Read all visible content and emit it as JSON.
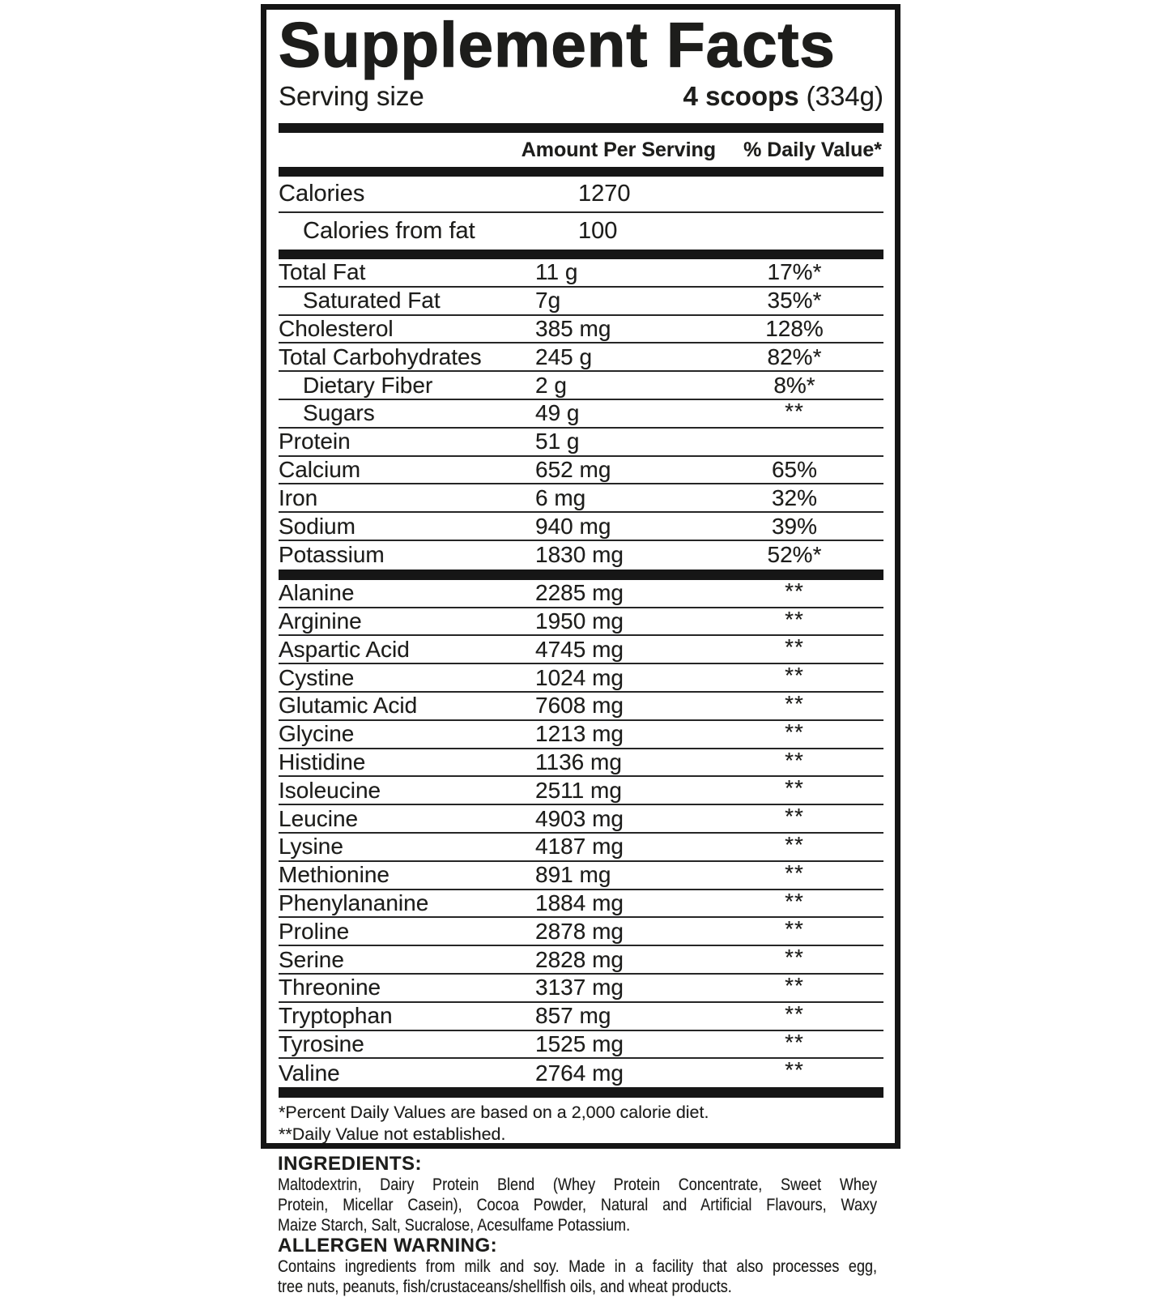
{
  "panel": {
    "title": "Supplement Facts",
    "serving": {
      "label": "Serving size",
      "amount_bold": "4 scoops",
      "amount_rest": "(334g)"
    },
    "columns": {
      "amount": "Amount Per Serving",
      "daily_value": "% Daily Value*"
    },
    "calories_rows": [
      {
        "label": "Calories",
        "value": "1270",
        "indent": false
      },
      {
        "label": "Calories from fat",
        "value": "100",
        "indent": true
      }
    ],
    "nutrient_rows": [
      {
        "label": "Total Fat",
        "amount": "11 g",
        "dv": "17%*",
        "indent": false
      },
      {
        "label": "Saturated Fat",
        "amount": "7g",
        "dv": "35%*",
        "indent": true
      },
      {
        "label": "Cholesterol",
        "amount": "385 mg",
        "dv": "128%",
        "indent": false
      },
      {
        "label": "Total Carbohydrates",
        "amount": "245 g",
        "dv": "82%*",
        "indent": false
      },
      {
        "label": "Dietary Fiber",
        "amount": "2 g",
        "dv": "8%*",
        "indent": true
      },
      {
        "label": "Sugars",
        "amount": "49 g",
        "dv": "**",
        "indent": true
      },
      {
        "label": "Protein",
        "amount": "51 g",
        "dv": "",
        "indent": false
      },
      {
        "label": "Calcium",
        "amount": "652 mg",
        "dv": "65%",
        "indent": false
      },
      {
        "label": "Iron",
        "amount": "6 mg",
        "dv": "32%",
        "indent": false
      },
      {
        "label": "Sodium",
        "amount": "940 mg",
        "dv": "39%",
        "indent": false
      },
      {
        "label": "Potassium",
        "amount": "1830 mg",
        "dv": "52%*",
        "indent": false
      }
    ],
    "amino_rows": [
      {
        "label": "Alanine",
        "amount": "2285 mg",
        "dv": "**"
      },
      {
        "label": "Arginine",
        "amount": "1950 mg",
        "dv": "**"
      },
      {
        "label": "Aspartic Acid",
        "amount": "4745 mg",
        "dv": "**"
      },
      {
        "label": "Cystine",
        "amount": "1024 mg",
        "dv": "**"
      },
      {
        "label": "Glutamic Acid",
        "amount": "7608 mg",
        "dv": "**"
      },
      {
        "label": "Glycine",
        "amount": "1213 mg",
        "dv": "**"
      },
      {
        "label": "Histidine",
        "amount": "1136 mg",
        "dv": "**"
      },
      {
        "label": "Isoleucine",
        "amount": "2511 mg",
        "dv": "**"
      },
      {
        "label": "Leucine",
        "amount": "4903 mg",
        "dv": "**"
      },
      {
        "label": "Lysine",
        "amount": "4187 mg",
        "dv": "**"
      },
      {
        "label": "Methionine",
        "amount": "891 mg",
        "dv": "**"
      },
      {
        "label": "Phenylananine",
        "amount": "1884 mg",
        "dv": "**"
      },
      {
        "label": "Proline",
        "amount": "2878 mg",
        "dv": "**"
      },
      {
        "label": "Serine",
        "amount": "2828 mg",
        "dv": "**"
      },
      {
        "label": "Threonine",
        "amount": "3137 mg",
        "dv": "**"
      },
      {
        "label": "Tryptophan",
        "amount": "857 mg",
        "dv": "**"
      },
      {
        "label": "Tyrosine",
        "amount": "1525 mg",
        "dv": "**"
      },
      {
        "label": "Valine",
        "amount": "2764 mg",
        "dv": "**"
      }
    ],
    "footnotes": [
      "*Percent Daily Values are based on a 2,000 calorie diet.",
      "**Daily Value not established."
    ]
  },
  "ingredients": {
    "heading": "INGREDIENTS:",
    "text": "Maltodextrin, Dairy Protein Blend (Whey Protein Concentrate, Sweet Whey Protein, Micellar Casein), Cocoa Powder, Natural and Artificial Flavours, Waxy Maize Starch, Salt, Sucralose, Acesulfame Potassium.",
    "lines": [
      "Maltodextrin, Dairy Protein Blend (Whey Protein Concentrate, Sweet Whey",
      "Protein, Micellar Casein), Cocoa Powder, Natural and Artificial Flavours, Waxy",
      "Maize Starch, Salt, Sucralose, Acesulfame Potassium."
    ]
  },
  "allergen": {
    "heading": "ALLERGEN WARNING:",
    "text": "Contains ingredients from milk and soy. Made in a facility that also processes egg, tree nuts, peanuts, fish/crustaceans/shellfish oils, and wheat products.",
    "lines": [
      "Contains ingredients from milk and soy. Made in a facility that also processes egg,",
      "tree nuts, peanuts, fish/crustaceans/shellfish oils, and wheat products."
    ]
  },
  "colors": {
    "ink": "#1d1d1b",
    "background": "#ffffff",
    "bar": "#161616"
  }
}
